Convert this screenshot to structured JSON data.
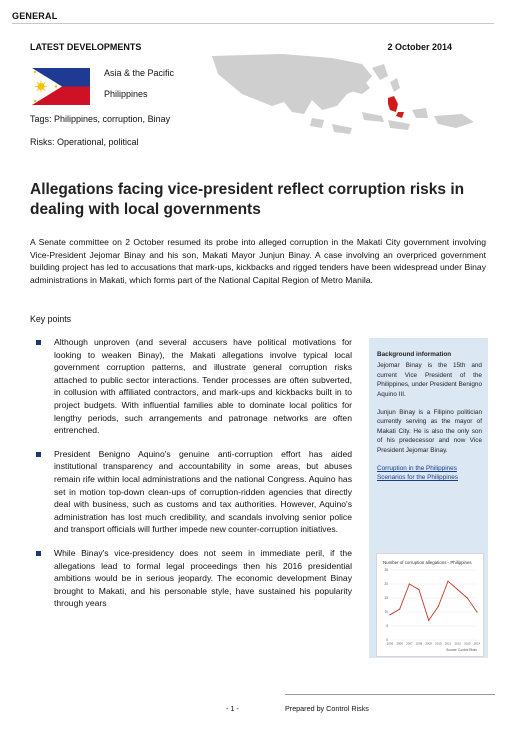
{
  "header": {
    "section": "GENERAL"
  },
  "meta": {
    "latest": "LATEST DEVELOPMENTS",
    "date": "2 October 2014",
    "region": "Asia & the Pacific",
    "country": "Philippines",
    "tags": "Tags: Philippines, corruption, Binay",
    "risks": "Risks: Operational, political"
  },
  "article": {
    "title": "Allegations facing vice-president reflect corruption risks in dealing with local governments",
    "intro": "A Senate committee on 2 October resumed its probe into alleged corruption in the Makati City government involving Vice-President Jejomar Binay and his son, Makati Mayor Junjun Binay. A case involving an overpriced government building project has led to accusations that mark-ups, kickbacks and rigged tenders have been widespread under Binay administrations in Makati, which forms part of the National Capital Region of Metro Manila.",
    "key_points_label": "Key points",
    "bullets": [
      "Although unproven (and several accusers have political motivations for looking to weaken Binay), the Makati allegations involve typical local government corruption patterns, and illustrate general corruption risks attached to public sector interactions. Tender processes are often subverted, in collusion with affiliated contractors, and mark-ups and kickbacks built in to project budgets. With influential families able to dominate local politics for lengthy periods, such arrangements and patronage networks are often entrenched.",
      "President Benigno Aquino's genuine anti-corruption effort has aided institutional transparency and accountability in some areas, but abuses remain rife within local administrations and the national Congress. Aquino has set in motion top-down clean-ups of corruption-ridden agencies that directly deal with business, such as customs and tax authorities. However, Aquino's administration has lost much credibility, and scandals involving senior police and transport officials will further impede new counter-corruption initiatives.",
      "While Binay's vice-presidency does not seem in immediate peril, if the allegations lead to formal legal proceedings then his 2016 presidential ambitions would be in serious jeopardy. The economic development Binay brought to Makati, and his personable style, have sustained his popularity through years"
    ]
  },
  "sidebar": {
    "heading": "Background information",
    "para1": "Jejomar Binay is the 15th and current Vice President of the Philippines, under President Benigno Aquino III.",
    "para2": "Junjun Binay is a Filipino politician currently serving as the mayor of Makati City. He is also the only son of his predecessor and now Vice President Jejomar Binay.",
    "link1": "Corruption in the Philippines",
    "link2": "Scenarios for the Philippines"
  },
  "chart_data": {
    "type": "line",
    "title": "Number of corruption allegations - Philippines",
    "x": [
      "2005",
      "2006",
      "2007",
      "2008",
      "2009",
      "2010",
      "2011",
      "2012",
      "2013",
      "2014"
    ],
    "values": [
      9,
      11,
      20,
      18,
      7,
      12,
      21,
      18,
      15,
      10
    ],
    "ylim": [
      0,
      25
    ],
    "yticks": [
      0,
      5,
      10,
      15,
      20,
      25
    ],
    "source": "Source: Control Risks",
    "line_color": "#c0392b"
  },
  "footer": {
    "page": "- 1 -",
    "prepared": "Prepared by Control Risks"
  }
}
